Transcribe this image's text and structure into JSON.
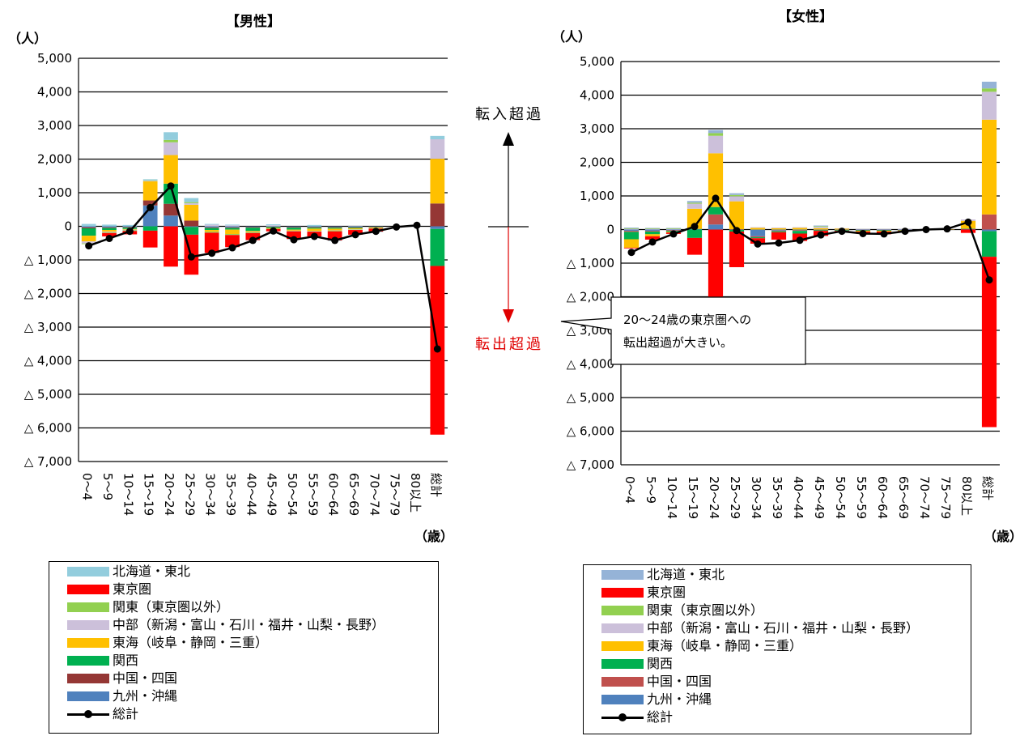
{
  "chart_data": [
    {
      "type": "bar",
      "stacked": true,
      "title": "【男性】",
      "ylabel": "（人）",
      "xlabel": "（歳）",
      "ylim": [
        -7000,
        5000
      ],
      "yticks": [
        5000,
        4000,
        3000,
        2000,
        1000,
        0,
        -1000,
        -2000,
        -3000,
        -4000,
        -5000,
        -6000,
        -7000
      ],
      "ytick_labels": [
        "5,000",
        "4,000",
        "3,000",
        "2,000",
        "1,000",
        "0",
        "△ 1,000",
        "△ 2,000",
        "△ 3,000",
        "△ 4,000",
        "△ 5,000",
        "△ 6,000",
        "△ 7,000"
      ],
      "grid": true,
      "categories": [
        "0～4",
        "5～9",
        "10～14",
        "15～19",
        "20～24",
        "25～29",
        "30～34",
        "35～39",
        "40～44",
        "45～49",
        "50～54",
        "55～59",
        "60～64",
        "65～69",
        "70～74",
        "75～79",
        "80以上",
        "総計"
      ],
      "series": [
        {
          "name": "九州・沖縄",
          "color": "#4F81BD",
          "values": [
            -30,
            -30,
            -20,
            620,
            320,
            -20,
            -30,
            -30,
            -20,
            -10,
            -20,
            -20,
            -20,
            -20,
            -10,
            0,
            0,
            -80
          ]
        },
        {
          "name": "中国・四国",
          "color": "#953735",
          "values": [
            -30,
            -20,
            -20,
            150,
            350,
            170,
            -20,
            -20,
            -20,
            -10,
            -20,
            -20,
            -20,
            -20,
            -10,
            0,
            0,
            680
          ]
        },
        {
          "name": "関西",
          "color": "#00B050",
          "values": [
            -220,
            -60,
            -40,
            -130,
            600,
            -230,
            -60,
            -50,
            -100,
            -30,
            -60,
            -30,
            -30,
            -20,
            -10,
            0,
            0,
            -1100
          ]
        },
        {
          "name": "東海（岐阜・静岡・三重）",
          "color": "#FFC000",
          "values": [
            -170,
            -50,
            -20,
            570,
            850,
            470,
            -50,
            -130,
            -30,
            -20,
            -30,
            -70,
            -50,
            -30,
            -20,
            0,
            0,
            1330
          ]
        },
        {
          "name": "中部（新潟・富山・石川・福井・山梨・長野）",
          "color": "#CCC0DA",
          "values": [
            -60,
            -20,
            -20,
            20,
            380,
            50,
            50,
            30,
            -10,
            30,
            -10,
            -10,
            -10,
            -10,
            -10,
            0,
            0,
            580
          ]
        },
        {
          "name": "関東（東京圏以外）",
          "color": "#92D050",
          "values": [
            -20,
            -20,
            -20,
            10,
            70,
            30,
            -30,
            -30,
            -20,
            -10,
            -10,
            -10,
            -20,
            -10,
            -10,
            0,
            0,
            0
          ]
        },
        {
          "name": "東京圏",
          "color": "#FF0000",
          "values": [
            0,
            -100,
            -100,
            -500,
            -1200,
            -1190,
            -600,
            -360,
            -210,
            -70,
            -230,
            -140,
            -270,
            -140,
            -90,
            0,
            0,
            -5020
          ]
        },
        {
          "name": "北海道・東北",
          "color": "#93CDDD",
          "values": [
            70,
            50,
            40,
            30,
            230,
            120,
            20,
            20,
            -10,
            30,
            -10,
            40,
            -10,
            10,
            -10,
            0,
            0,
            100
          ]
        }
      ],
      "total": {
        "name": "総計",
        "values": [
          -580,
          -360,
          -150,
          560,
          1200,
          -910,
          -800,
          -640,
          -420,
          -140,
          -400,
          -300,
          -420,
          -250,
          -150,
          -20,
          30,
          -3650
        ]
      }
    },
    {
      "type": "bar",
      "stacked": true,
      "title": "【女性】",
      "ylabel": "（人）",
      "xlabel": "（歳）",
      "ylim": [
        -7000,
        5000
      ],
      "yticks": [
        5000,
        4000,
        3000,
        2000,
        1000,
        0,
        -1000,
        -2000,
        -3000,
        -4000,
        -5000,
        -6000,
        -7000
      ],
      "ytick_labels": [
        "5,000",
        "4,000",
        "3,000",
        "2,000",
        "1,000",
        "0",
        "△ 1,000",
        "△ 2,000",
        "△ 3,000",
        "△ 4,000",
        "△ 5,000",
        "△ 6,000",
        "△ 7,000"
      ],
      "grid": true,
      "categories": [
        "0～4",
        "5～9",
        "10～14",
        "15～19",
        "20～24",
        "25～29",
        "30～34",
        "35～39",
        "40～44",
        "45～49",
        "50～54",
        "55～59",
        "60～64",
        "65～69",
        "70～74",
        "75～79",
        "80以上",
        "総計"
      ],
      "series": [
        {
          "name": "九州・沖縄",
          "color": "#4F81BD",
          "values": [
            -40,
            -40,
            -20,
            20,
            150,
            -10,
            -200,
            -30,
            -20,
            -10,
            -10,
            -10,
            -10,
            -10,
            0,
            0,
            10,
            -50
          ]
        },
        {
          "name": "中国・四国",
          "color": "#C0504D",
          "values": [
            -30,
            -20,
            -20,
            0,
            300,
            10,
            -30,
            -20,
            -20,
            -10,
            -10,
            -10,
            -10,
            -10,
            0,
            0,
            10,
            450
          ]
        },
        {
          "name": "関西",
          "color": "#00B050",
          "values": [
            -220,
            -80,
            -30,
            -250,
            220,
            -50,
            -30,
            -30,
            -80,
            -20,
            -20,
            -20,
            -20,
            -10,
            0,
            0,
            10,
            -760
          ]
        },
        {
          "name": "東海（岐阜・静岡・三重）",
          "color": "#FFC000",
          "values": [
            -250,
            -60,
            -20,
            600,
            1600,
            830,
            50,
            40,
            50,
            40,
            30,
            -20,
            -20,
            -10,
            0,
            10,
            230,
            2820
          ]
        },
        {
          "name": "中部（新潟・富山・石川・福井・山梨・長野）",
          "color": "#CCC0DA",
          "values": [
            20,
            20,
            20,
            150,
            520,
            150,
            20,
            20,
            20,
            40,
            10,
            10,
            10,
            10,
            10,
            10,
            40,
            830
          ]
        },
        {
          "name": "関東（東京圏以外）",
          "color": "#92D050",
          "values": [
            20,
            20,
            20,
            30,
            80,
            40,
            0,
            0,
            0,
            20,
            0,
            0,
            0,
            0,
            0,
            0,
            0,
            100
          ]
        },
        {
          "name": "東京圏",
          "color": "#FF0000",
          "values": [
            -20,
            -100,
            -40,
            -500,
            -2050,
            -1060,
            -160,
            -220,
            -220,
            -150,
            -30,
            -60,
            -80,
            -20,
            0,
            0,
            -100,
            -5070
          ]
        },
        {
          "name": "北海道・東北",
          "color": "#95B3D7",
          "values": [
            20,
            10,
            10,
            50,
            90,
            50,
            0,
            0,
            0,
            20,
            0,
            0,
            0,
            0,
            0,
            0,
            0,
            200
          ]
        }
      ],
      "total": {
        "name": "総計",
        "values": [
          -680,
          -370,
          -130,
          90,
          930,
          -30,
          -430,
          -400,
          -320,
          -160,
          -50,
          -120,
          -130,
          -50,
          0,
          20,
          220,
          -1500
        ]
      }
    }
  ],
  "arrow_labels": {
    "inflow": "転入超過",
    "outflow": "転出超過"
  },
  "callout": {
    "line1": "20～24歳の東京圏への",
    "line2": "転出超過が大きい。"
  },
  "legend_order": [
    7,
    6,
    5,
    4,
    3,
    2,
    1,
    0
  ]
}
